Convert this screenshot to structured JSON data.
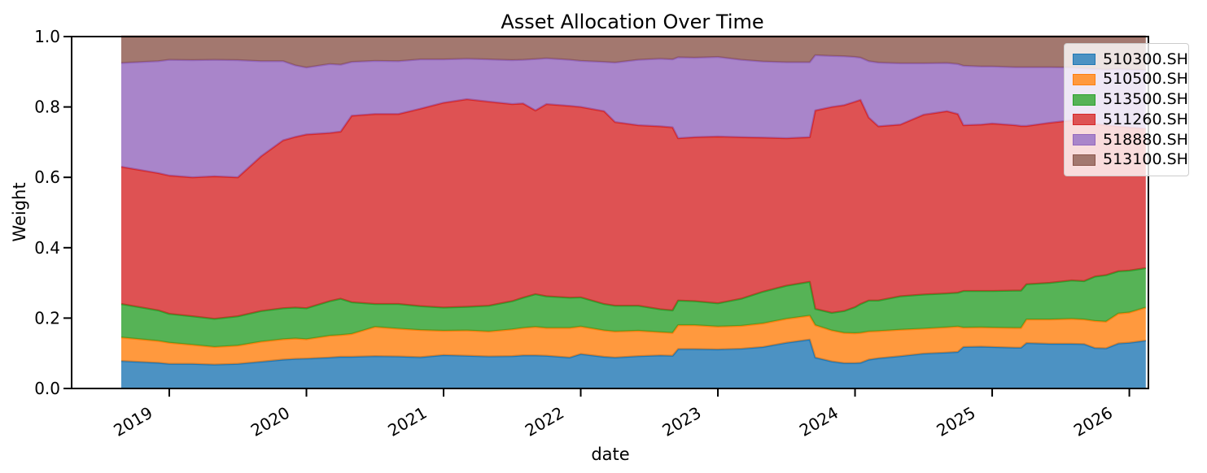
{
  "chart_data": {
    "type": "area",
    "stacked": true,
    "title": "Asset Allocation Over Time",
    "xlabel": "date",
    "ylabel": "Weight",
    "xlim": [
      2018.288,
      2026.139
    ],
    "ylim": [
      0.0,
      1.0
    ],
    "xticks": [
      2019,
      2020,
      2021,
      2022,
      2023,
      2024,
      2025,
      2026
    ],
    "xticklabels": [
      "2019",
      "2020",
      "2021",
      "2022",
      "2023",
      "2024",
      "2025",
      "2026"
    ],
    "yticks": [
      0.0,
      0.2,
      0.4,
      0.6,
      0.8,
      1.0
    ],
    "yticklabels": [
      "0.0",
      "0.2",
      "0.4",
      "0.6",
      "0.8",
      "1.0"
    ],
    "grid": false,
    "fill_alpha": 0.8,
    "legend": {
      "position": "upper right"
    },
    "x": [
      2018.65,
      2018.92,
      2019.0,
      2019.17,
      2019.33,
      2019.5,
      2019.67,
      2019.83,
      2019.92,
      2020.0,
      2020.17,
      2020.25,
      2020.33,
      2020.5,
      2020.67,
      2020.83,
      2021.0,
      2021.17,
      2021.33,
      2021.5,
      2021.58,
      2021.67,
      2021.75,
      2021.92,
      2022.0,
      2022.17,
      2022.25,
      2022.42,
      2022.58,
      2022.67,
      2022.71,
      2022.83,
      2023.0,
      2023.17,
      2023.33,
      2023.5,
      2023.67,
      2023.71,
      2023.83,
      2023.92,
      2024.0,
      2024.04,
      2024.1,
      2024.17,
      2024.33,
      2024.5,
      2024.67,
      2024.75,
      2024.79,
      2024.92,
      2025.0,
      2025.17,
      2025.21,
      2025.25,
      2025.42,
      2025.58,
      2025.67,
      2025.75,
      2025.83,
      2025.92,
      2026.0,
      2026.12
    ],
    "series": [
      {
        "name": "510300.SH",
        "color": "#1f77b4",
        "values": [
          0.078,
          0.073,
          0.07,
          0.07,
          0.068,
          0.07,
          0.076,
          0.082,
          0.084,
          0.085,
          0.088,
          0.09,
          0.09,
          0.092,
          0.091,
          0.089,
          0.095,
          0.093,
          0.091,
          0.092,
          0.094,
          0.094,
          0.093,
          0.088,
          0.098,
          0.09,
          0.088,
          0.092,
          0.094,
          0.093,
          0.112,
          0.112,
          0.111,
          0.113,
          0.118,
          0.13,
          0.139,
          0.088,
          0.077,
          0.072,
          0.072,
          0.073,
          0.082,
          0.086,
          0.092,
          0.099,
          0.102,
          0.104,
          0.118,
          0.119,
          0.118,
          0.116,
          0.116,
          0.129,
          0.127,
          0.127,
          0.126,
          0.115,
          0.114,
          0.128,
          0.13,
          0.136
        ]
      },
      {
        "name": "510500.SH",
        "color": "#ff7f0e",
        "values": [
          0.067,
          0.062,
          0.06,
          0.054,
          0.05,
          0.052,
          0.057,
          0.058,
          0.058,
          0.055,
          0.062,
          0.062,
          0.065,
          0.083,
          0.079,
          0.077,
          0.069,
          0.072,
          0.071,
          0.076,
          0.078,
          0.081,
          0.079,
          0.084,
          0.078,
          0.075,
          0.074,
          0.072,
          0.066,
          0.065,
          0.068,
          0.068,
          0.065,
          0.065,
          0.067,
          0.068,
          0.068,
          0.092,
          0.088,
          0.086,
          0.085,
          0.085,
          0.08,
          0.077,
          0.075,
          0.071,
          0.072,
          0.072,
          0.055,
          0.055,
          0.055,
          0.056,
          0.056,
          0.067,
          0.069,
          0.071,
          0.07,
          0.077,
          0.076,
          0.085,
          0.086,
          0.094
        ]
      },
      {
        "name": "513500.SH",
        "color": "#2ca02c",
        "values": [
          0.095,
          0.087,
          0.082,
          0.081,
          0.08,
          0.083,
          0.087,
          0.088,
          0.088,
          0.088,
          0.098,
          0.103,
          0.09,
          0.065,
          0.07,
          0.068,
          0.066,
          0.067,
          0.073,
          0.08,
          0.086,
          0.093,
          0.09,
          0.086,
          0.083,
          0.075,
          0.073,
          0.071,
          0.065,
          0.064,
          0.07,
          0.068,
          0.066,
          0.077,
          0.09,
          0.094,
          0.096,
          0.046,
          0.05,
          0.062,
          0.074,
          0.082,
          0.088,
          0.087,
          0.095,
          0.097,
          0.096,
          0.096,
          0.104,
          0.103,
          0.104,
          0.106,
          0.106,
          0.1,
          0.104,
          0.109,
          0.109,
          0.126,
          0.132,
          0.12,
          0.119,
          0.112
        ]
      },
      {
        "name": "511260.SH",
        "color": "#d62728",
        "values": [
          0.39,
          0.39,
          0.393,
          0.395,
          0.405,
          0.395,
          0.44,
          0.477,
          0.485,
          0.494,
          0.478,
          0.475,
          0.53,
          0.54,
          0.54,
          0.561,
          0.582,
          0.59,
          0.58,
          0.56,
          0.552,
          0.522,
          0.546,
          0.545,
          0.541,
          0.548,
          0.522,
          0.513,
          0.52,
          0.52,
          0.461,
          0.466,
          0.474,
          0.459,
          0.438,
          0.419,
          0.411,
          0.564,
          0.585,
          0.585,
          0.584,
          0.58,
          0.52,
          0.495,
          0.488,
          0.511,
          0.518,
          0.508,
          0.471,
          0.473,
          0.476,
          0.47,
          0.468,
          0.45,
          0.455,
          0.455,
          0.453,
          0.434,
          0.426,
          0.412,
          0.407,
          0.396
        ]
      },
      {
        "name": "518880.SH",
        "color": "#9467bd",
        "values": [
          0.295,
          0.318,
          0.329,
          0.333,
          0.331,
          0.333,
          0.27,
          0.225,
          0.203,
          0.19,
          0.196,
          0.19,
          0.153,
          0.151,
          0.15,
          0.14,
          0.123,
          0.115,
          0.12,
          0.125,
          0.124,
          0.146,
          0.13,
          0.131,
          0.131,
          0.14,
          0.169,
          0.186,
          0.192,
          0.193,
          0.23,
          0.226,
          0.226,
          0.22,
          0.216,
          0.216,
          0.213,
          0.157,
          0.145,
          0.139,
          0.127,
          0.12,
          0.16,
          0.181,
          0.174,
          0.146,
          0.137,
          0.142,
          0.169,
          0.165,
          0.162,
          0.165,
          0.167,
          0.167,
          0.158,
          0.15,
          0.152,
          0.156,
          0.158,
          0.163,
          0.164,
          0.167
        ]
      },
      {
        "name": "513100.SH",
        "color": "#8c564b",
        "values": [
          0.075,
          0.07,
          0.066,
          0.067,
          0.066,
          0.067,
          0.07,
          0.07,
          0.082,
          0.088,
          0.078,
          0.08,
          0.072,
          0.069,
          0.07,
          0.065,
          0.065,
          0.063,
          0.065,
          0.067,
          0.066,
          0.064,
          0.062,
          0.066,
          0.069,
          0.072,
          0.074,
          0.066,
          0.063,
          0.065,
          0.059,
          0.06,
          0.058,
          0.066,
          0.071,
          0.073,
          0.073,
          0.053,
          0.055,
          0.056,
          0.058,
          0.06,
          0.07,
          0.074,
          0.076,
          0.076,
          0.075,
          0.078,
          0.083,
          0.085,
          0.085,
          0.087,
          0.087,
          0.087,
          0.087,
          0.088,
          0.09,
          0.092,
          0.094,
          0.092,
          0.094,
          0.095
        ]
      }
    ]
  }
}
